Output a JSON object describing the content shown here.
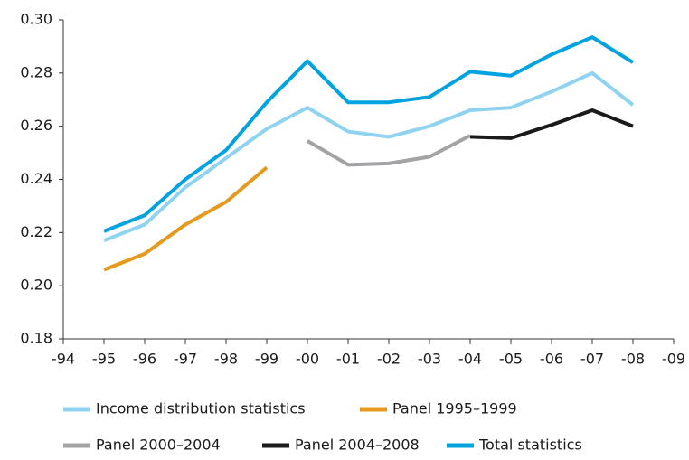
{
  "chart_data": {
    "type": "line",
    "categories": [
      "-94",
      "-95",
      "-96",
      "-97",
      "-98",
      "-99",
      "-00",
      "-01",
      "-02",
      "-03",
      "-04",
      "-05",
      "-06",
      "-07",
      "-08",
      "-09"
    ],
    "series": [
      {
        "name": "Income distribution statistics",
        "color": "#8fd3f0",
        "values": [
          null,
          0.217,
          0.223,
          0.237,
          0.248,
          0.259,
          0.267,
          0.258,
          0.256,
          0.26,
          0.266,
          0.267,
          0.273,
          0.28,
          0.268,
          null
        ]
      },
      {
        "name": "Panel 1995–1999",
        "color": "#e39a1e",
        "values": [
          null,
          0.206,
          0.212,
          0.223,
          0.2315,
          0.2445,
          null,
          null,
          null,
          null,
          null,
          null,
          null,
          null,
          null,
          null
        ]
      },
      {
        "name": "Panel 2000–2004",
        "color": "#a3a3a6",
        "values": [
          null,
          null,
          null,
          null,
          null,
          null,
          0.2545,
          0.2455,
          0.246,
          0.2485,
          0.2565,
          null,
          null,
          null,
          null,
          null
        ]
      },
      {
        "name": "Panel 2004–2008",
        "color": "#1a1a1a",
        "values": [
          null,
          null,
          null,
          null,
          null,
          null,
          null,
          null,
          null,
          null,
          0.256,
          0.2555,
          0.2605,
          0.266,
          0.26,
          null
        ]
      },
      {
        "name": "Total statistics",
        "color": "#00a3e0",
        "values": [
          null,
          0.2205,
          0.2265,
          0.24,
          0.251,
          0.269,
          0.2845,
          0.269,
          0.269,
          0.271,
          0.2805,
          0.279,
          0.287,
          0.2935,
          0.284,
          null
        ]
      }
    ],
    "ylim": [
      0.18,
      0.3
    ],
    "yticks": [
      0.18,
      {
        "value": 0.2,
        "label": "0.20"
      },
      0.22,
      0.24,
      0.26,
      0.28,
      {
        "value": 0.3,
        "label": "0.30"
      }
    ],
    "grid": false
  }
}
